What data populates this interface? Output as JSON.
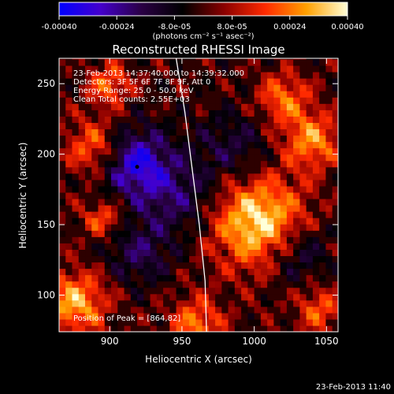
{
  "chart_data": {
    "type": "heatmap",
    "title": "Reconstructed RHESSI Image",
    "xlabel": "Heliocentric X (arcsec)",
    "ylabel": "Heliocentric Y (arcsec)",
    "xlim": [
      865,
      1058
    ],
    "ylim": [
      74,
      268
    ],
    "x_ticks": [
      900,
      950,
      1000,
      1050
    ],
    "y_ticks": [
      100,
      150,
      200,
      250
    ],
    "colorbar": {
      "range": [
        -0.0004,
        0.0004
      ],
      "tick_values": [
        -0.0004,
        -0.00024,
        -8e-05,
        8e-05,
        0.00024,
        0.0004
      ],
      "tick_labels": [
        "-0.00040",
        "-0.00024",
        "-8.0e-05",
        "8.0e-05",
        "0.00024",
        "0.00040"
      ],
      "label": "(photons cm⁻² s⁻¹ asec⁻²)",
      "colors": [
        "#0000ff",
        "#4400cc",
        "#2a0044",
        "#000000",
        "#8a0000",
        "#ff2a00",
        "#ffa000",
        "#ffffd8"
      ]
    },
    "annotations": [
      "23-Feb-2013 14:37:40.000 to 14:39:32.000",
      "Detectors: 3F 5F 6F 7F 8F 9F, Att 0",
      "Energy Range: 25.0 - 50.0 keV",
      "Clean    Total counts: 2.55E+03"
    ],
    "peak_label": "Position of Peak = [864,82]",
    "limb_curve": [
      [
        946,
        268
      ],
      [
        952,
        230
      ],
      [
        957,
        190
      ],
      [
        962,
        150
      ],
      [
        966,
        110
      ],
      [
        967,
        74
      ]
    ],
    "marker": [
      919,
      191
    ],
    "hot_regions": [
      {
        "x": 1003,
        "y": 152,
        "level": 0.95,
        "r": 32
      },
      {
        "x": 890,
        "y": 205,
        "level": 0.6,
        "r": 20
      },
      {
        "x": 876,
        "y": 95,
        "level": 0.75,
        "r": 22
      },
      {
        "x": 1040,
        "y": 210,
        "level": 0.65,
        "r": 20
      },
      {
        "x": 1020,
        "y": 240,
        "level": 0.55,
        "r": 18
      },
      {
        "x": 960,
        "y": 80,
        "level": 0.6,
        "r": 18
      },
      {
        "x": 900,
        "y": 250,
        "level": 0.55,
        "r": 15
      },
      {
        "x": 895,
        "y": 155,
        "level": 0.5,
        "r": 14
      },
      {
        "x": 1045,
        "y": 90,
        "level": 0.5,
        "r": 16
      }
    ],
    "cold_regions": [
      {
        "x": 917,
        "y": 195,
        "level": -0.8,
        "r": 24
      },
      {
        "x": 945,
        "y": 170,
        "level": -0.45,
        "r": 28
      },
      {
        "x": 1030,
        "y": 130,
        "level": -0.45,
        "r": 22
      },
      {
        "x": 985,
        "y": 205,
        "level": -0.35,
        "r": 25
      },
      {
        "x": 920,
        "y": 130,
        "level": -0.4,
        "r": 22
      }
    ]
  },
  "footer_timestamp": "23-Feb-2013 11:40"
}
